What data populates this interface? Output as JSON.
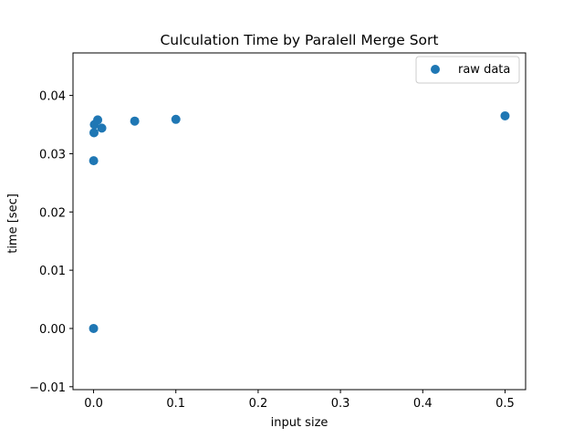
{
  "chart_data": {
    "type": "scatter",
    "title": "Culculation Time by Paralell Merge Sort",
    "xlabel": "input size",
    "ylabel": "time [sec]",
    "xlim": [
      -0.025,
      0.525
    ],
    "ylim": [
      -0.0105,
      0.0473
    ],
    "xticks": [
      0.0,
      0.1,
      0.2,
      0.3,
      0.4,
      0.5
    ],
    "xtick_labels": [
      "0.0",
      "0.1",
      "0.2",
      "0.3",
      "0.4",
      "0.5"
    ],
    "yticks": [
      -0.01,
      0.0,
      0.01,
      0.02,
      0.03,
      0.04
    ],
    "ytick_labels": [
      "−0.01",
      "0.00",
      "0.01",
      "0.02",
      "0.03",
      "0.04"
    ],
    "grid": false,
    "legend_position": "top-right",
    "series": [
      {
        "name": "raw data",
        "color": "#1f77b4",
        "x": [
          1e-05,
          0.0001,
          0.0005,
          0.001,
          0.005,
          0.01,
          0.05,
          0.1,
          0.5
        ],
        "y": [
          0.0,
          0.0288,
          0.0336,
          0.035,
          0.0358,
          0.0344,
          0.0356,
          0.0359,
          0.0365
        ]
      }
    ]
  }
}
